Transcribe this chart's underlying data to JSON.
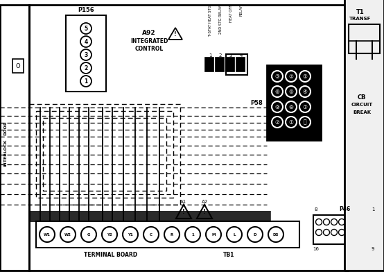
{
  "bg_color": "#ffffff",
  "line_color": "#000000",
  "fig_width": 5.54,
  "fig_height": 3.95,
  "dpi": 100,
  "p156_labels": [
    "1",
    "2",
    "3",
    "4",
    "5"
  ],
  "p58_labels": [
    [
      "3",
      "2",
      "1"
    ],
    [
      "6",
      "5",
      "4"
    ],
    [
      "9",
      "8",
      "7"
    ],
    [
      "2",
      "1",
      "0"
    ]
  ],
  "tb_pins": [
    "W1",
    "W2",
    "G",
    "Y2",
    "Y1",
    "C",
    "R",
    "1",
    "M",
    "L",
    "D",
    "DS"
  ]
}
